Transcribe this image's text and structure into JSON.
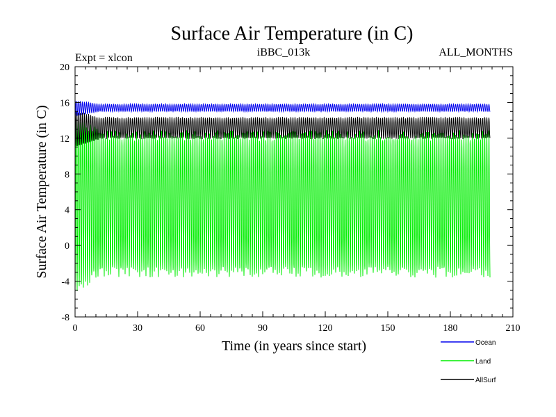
{
  "chart_data": {
    "type": "line",
    "title": "Surface Air Temperature (in C)",
    "subtitle_left": "Expt = xlcon",
    "subtitle_center": "iBBC_013k",
    "subtitle_right": "ALL_MONTHS",
    "xlabel": "Time (in years since start)",
    "ylabel": "Surface Air Temperature (in C)",
    "xlim": [
      0,
      210
    ],
    "ylim": [
      -8,
      20
    ],
    "xticks": [
      0,
      30,
      60,
      90,
      120,
      150,
      180,
      210
    ],
    "xtick_labels": [
      "0",
      "30",
      "60",
      "90",
      "120",
      "150",
      "180",
      "210"
    ],
    "yticks": [
      -8,
      -4,
      0,
      4,
      8,
      12,
      16,
      20
    ],
    "ytick_labels": [
      "-8",
      "-4",
      "0",
      "4",
      "8",
      "12",
      "16",
      "20"
    ],
    "x_range_years": [
      0,
      199
    ],
    "sampling": "monthly",
    "series": [
      {
        "name": "Land",
        "color": "#00ee00",
        "seasonal_min": -3.0,
        "seasonal_max": 12.3,
        "initial_min": -5.0,
        "initial_max": 14.8
      },
      {
        "name": "AllSurf",
        "color": "#000000",
        "seasonal_min": 12.0,
        "seasonal_max": 14.3,
        "initial_min": 11.0,
        "initial_max": 15.0
      },
      {
        "name": "Ocean",
        "color": "#0000ee",
        "seasonal_min": 15.0,
        "seasonal_max": 15.8,
        "initial_min": 14.5,
        "initial_max": 16.2
      }
    ],
    "legend": [
      {
        "name": "Ocean",
        "color": "#0000ee"
      },
      {
        "name": "Land",
        "color": "#00ee00"
      },
      {
        "name": "AllSurf",
        "color": "#000000"
      }
    ],
    "legend_position": "bottom-right"
  }
}
